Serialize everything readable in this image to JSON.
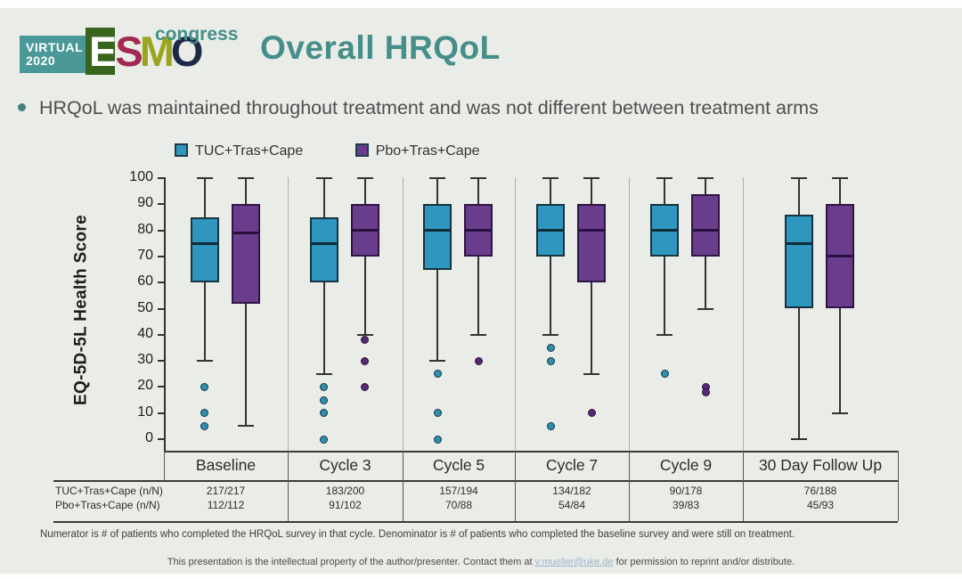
{
  "logo": {
    "virtual_line1": "VIRTUAL",
    "virtual_line2": "2020",
    "e": "E",
    "s": "S",
    "m": "M",
    "o": "O",
    "congress": "congress"
  },
  "title": "Overall HRQoL",
  "bullet": "HRQoL was maintained throughout treatment and was not different between treatment arms",
  "footnote": "Numerator is # of patients who completed the HRQoL survey in that cycle. Denominator is # of patients who completed the baseline survey and were still on treatment.",
  "footer": {
    "pre": "This presentation is the intellectual property of the author/presenter. Contact them at ",
    "email": "v.mueller@uke.de",
    "post": " for permission to reprint and/or distribute."
  },
  "colors": {
    "slide_bg": "#e9ece7",
    "title_teal": "#458e89",
    "axis": "#333333",
    "panel_separator": "#abafab",
    "table_line": "#3a3a3a"
  },
  "chart_data": {
    "type": "boxplot",
    "ylabel": "EQ-5D-5L Health Score",
    "ylim": [
      0,
      100
    ],
    "yticks": [
      0,
      10,
      20,
      30,
      40,
      50,
      60,
      70,
      80,
      90,
      100
    ],
    "grid": false,
    "legend_position": "top",
    "categories": [
      "Baseline",
      "Cycle 3",
      "Cycle 5",
      "Cycle 7",
      "Cycle 9",
      "30 Day Follow Up"
    ],
    "series": [
      {
        "name": "TUC+Tras+Cape",
        "color": "#2f97bf",
        "border": "#16333f",
        "median_color": "#0c2d3b",
        "dot_color": "#2f8fb0",
        "boxes": [
          {
            "whislo": 30,
            "q1": 60,
            "med": 75,
            "q3": 85,
            "whishi": 100,
            "outliers": [
              20,
              10,
              5
            ]
          },
          {
            "whislo": 25,
            "q1": 60,
            "med": 75,
            "q3": 85,
            "whishi": 100,
            "outliers": [
              20,
              15,
              10,
              0
            ]
          },
          {
            "whislo": 30,
            "q1": 65,
            "med": 80,
            "q3": 90,
            "whishi": 100,
            "outliers": [
              25,
              10,
              0
            ]
          },
          {
            "whislo": 40,
            "q1": 70,
            "med": 80,
            "q3": 90,
            "whishi": 100,
            "outliers": [
              35,
              30,
              5
            ]
          },
          {
            "whislo": 40,
            "q1": 70,
            "med": 80,
            "q3": 90,
            "whishi": 100,
            "outliers": [
              25
            ]
          },
          {
            "whislo": 0,
            "q1": 50,
            "med": 75,
            "q3": 86,
            "whishi": 100,
            "outliers": []
          }
        ]
      },
      {
        "name": "Pbo+Tras+Cape",
        "color": "#6a3d8c",
        "border": "#2e1545",
        "median_color": "#2a1040",
        "dot_color": "#552a72",
        "boxes": [
          {
            "whislo": 5,
            "q1": 52,
            "med": 79,
            "q3": 90,
            "whishi": 100,
            "outliers": []
          },
          {
            "whislo": 40,
            "q1": 70,
            "med": 80,
            "q3": 90,
            "whishi": 100,
            "outliers": [
              38,
              30,
              20
            ]
          },
          {
            "whislo": 40,
            "q1": 70,
            "med": 80,
            "q3": 90,
            "whishi": 100,
            "outliers": [
              30
            ]
          },
          {
            "whislo": 25,
            "q1": 60,
            "med": 80,
            "q3": 90,
            "whishi": 100,
            "outliers": [
              10
            ]
          },
          {
            "whislo": 50,
            "q1": 70,
            "med": 80,
            "q3": 94,
            "whishi": 100,
            "outliers": [
              20,
              18
            ]
          },
          {
            "whislo": 10,
            "q1": 50,
            "med": 70,
            "q3": 90,
            "whishi": 100,
            "outliers": []
          }
        ]
      }
    ],
    "table": {
      "rows": [
        {
          "label": "TUC+Tras+Cape (n/N)",
          "values": [
            "217/217",
            "183/200",
            "157/194",
            "134/182",
            "90/178",
            "76/188"
          ]
        },
        {
          "label": "Pbo+Tras+Cape (n/N)",
          "values": [
            "112/112",
            "91/102",
            "70/88",
            "54/84",
            "39/83",
            "45/93"
          ]
        }
      ]
    }
  }
}
